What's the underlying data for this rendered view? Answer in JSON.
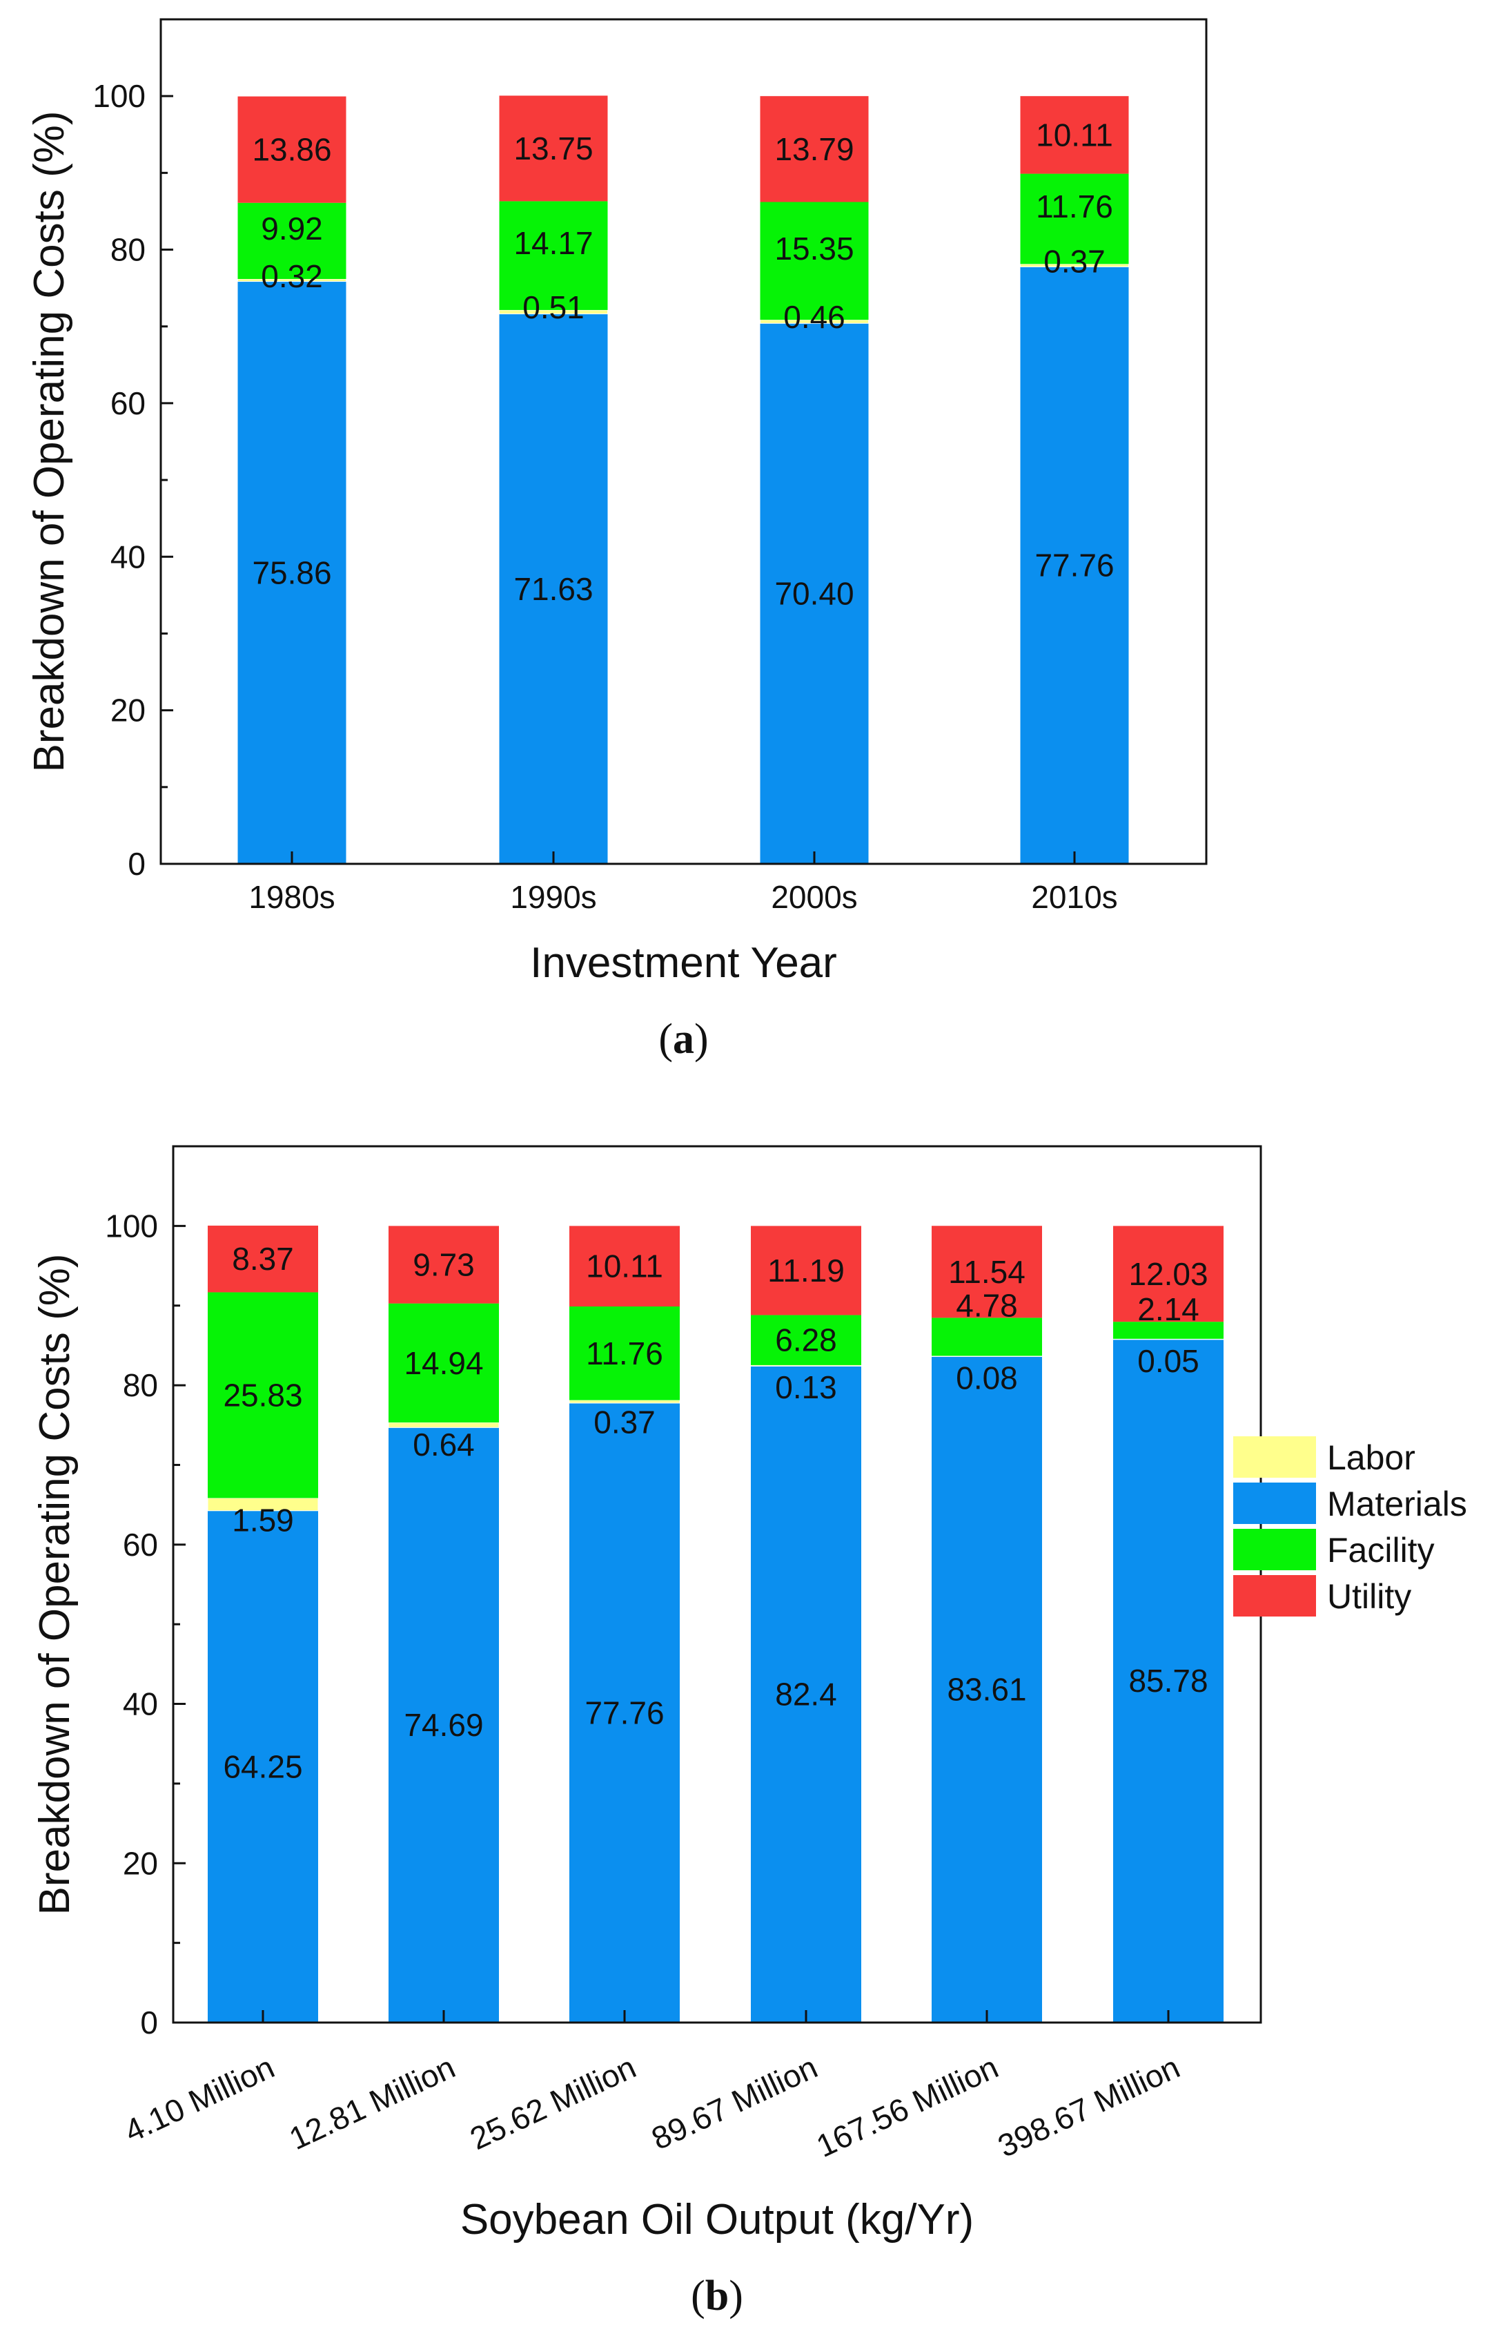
{
  "chart_data": [
    {
      "type": "bar",
      "stacked": true,
      "panel_label": "a",
      "title": "",
      "xlabel": "Investment Year",
      "ylabel": "Breakdown of Operating Costs (%)",
      "ylim": [
        0,
        110
      ],
      "yticks": [
        "0",
        "20",
        "40",
        "60",
        "80",
        "100"
      ],
      "categories": [
        "1980s",
        "1990s",
        "2000s",
        "2010s"
      ],
      "series": [
        {
          "name": "Materials",
          "color": "#0b8fef",
          "values": [
            75.86,
            71.63,
            70.4,
            77.76
          ],
          "labels": [
            "75.86",
            "71.63",
            "70.40",
            "77.76"
          ]
        },
        {
          "name": "Labor",
          "color": "#ffff8c",
          "values": [
            0.32,
            0.51,
            0.46,
            0.37
          ],
          "labels": [
            "0.32",
            "0.51",
            "0.46",
            "0.37"
          ]
        },
        {
          "name": "Facility",
          "color": "#06f306",
          "values": [
            9.92,
            14.17,
            15.35,
            11.76
          ],
          "labels": [
            "9.92",
            "14.17",
            "15.35",
            "11.76"
          ]
        },
        {
          "name": "Utility",
          "color": "#f73a3a",
          "values": [
            13.86,
            13.75,
            13.79,
            10.11
          ],
          "labels": [
            "13.86",
            "13.75",
            "13.79",
            "10.11"
          ]
        }
      ]
    },
    {
      "type": "bar",
      "stacked": true,
      "panel_label": "b",
      "title": "",
      "xlabel": "Soybean Oil Output (kg/Yr)",
      "ylabel": "Breakdown of Operating Costs (%)",
      "ylim": [
        0,
        110
      ],
      "yticks": [
        "0",
        "20",
        "40",
        "60",
        "80",
        "100"
      ],
      "categories": [
        "4.10 Million",
        "12.81 Million",
        "25.62 Million",
        "89.67 Million",
        "167.56 Million",
        "398.67 Million"
      ],
      "legend_position": "right",
      "legend": [
        "Labor",
        "Materials",
        "Facility",
        "Utility"
      ],
      "series": [
        {
          "name": "Materials",
          "color": "#0b8fef",
          "values": [
            64.25,
            74.69,
            77.76,
            82.4,
            83.61,
            85.78
          ],
          "labels": [
            "64.25",
            "74.69",
            "77.76",
            "82.4",
            "83.61",
            "85.78"
          ]
        },
        {
          "name": "Labor",
          "color": "#ffff8c",
          "values": [
            1.59,
            0.64,
            0.37,
            0.13,
            0.08,
            0.05
          ],
          "labels": [
            "1.59",
            "0.64",
            "0.37",
            "0.13",
            "0.08",
            "0.05"
          ]
        },
        {
          "name": "Facility",
          "color": "#06f306",
          "values": [
            25.83,
            14.94,
            11.76,
            6.28,
            4.78,
            2.14
          ],
          "labels": [
            "25.83",
            "14.94",
            "11.76",
            "6.28",
            "4.78",
            "2.14"
          ]
        },
        {
          "name": "Utility",
          "color": "#f73a3a",
          "values": [
            8.37,
            9.73,
            10.11,
            11.19,
            11.54,
            12.03
          ],
          "labels": [
            "8.37",
            "9.73",
            "10.11",
            "11.19",
            "11.54",
            "12.03"
          ]
        }
      ]
    }
  ]
}
